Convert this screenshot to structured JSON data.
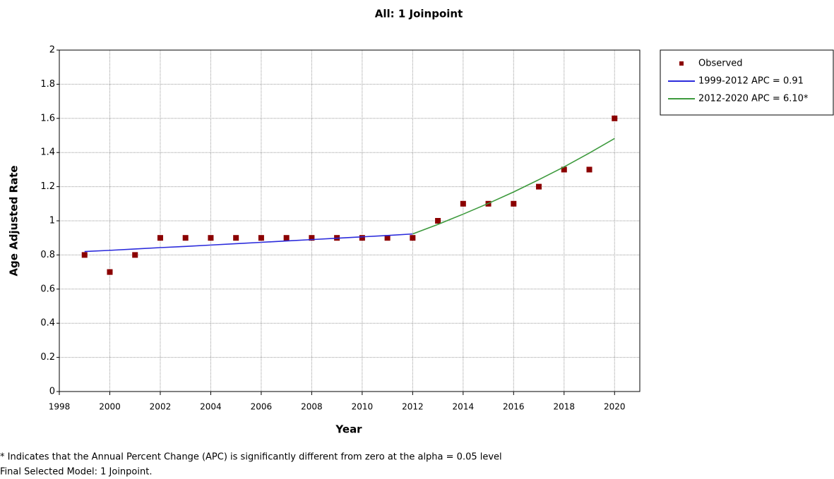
{
  "chart_data": {
    "type": "line",
    "title": "All: 1 Joinpoint",
    "x_label": "Year",
    "y_label": "Age Adjusted Rate",
    "xlim": [
      1998,
      2021
    ],
    "xticks": [
      1998,
      2000,
      2002,
      2004,
      2006,
      2008,
      2010,
      2012,
      2014,
      2016,
      2018,
      2020
    ],
    "ylim": [
      0,
      2
    ],
    "yticks": [
      0,
      0.2,
      0.4,
      0.6,
      0.8,
      1,
      1.2,
      1.4,
      1.6,
      1.8,
      2
    ],
    "grid": true,
    "legend": "outside-right",
    "series": [
      {
        "name": "Observed",
        "mode": "markers",
        "color": "#8b0000",
        "x": [
          1999,
          2000,
          2001,
          2002,
          2003,
          2004,
          2005,
          2006,
          2007,
          2008,
          2009,
          2010,
          2011,
          2012,
          2013,
          2014,
          2015,
          2016,
          2017,
          2018,
          2019,
          2020
        ],
        "values": [
          0.8,
          0.7,
          0.8,
          0.9,
          0.9,
          0.9,
          0.9,
          0.9,
          0.9,
          0.9,
          0.9,
          0.9,
          0.9,
          0.9,
          1.0,
          1.1,
          1.1,
          1.1,
          1.2,
          1.3,
          1.3,
          1.6
        ]
      },
      {
        "name": "1999-2012 APC  = 0.91",
        "mode": "lines",
        "color": "#2b2bdc",
        "x": [
          1999,
          2000,
          2001,
          2002,
          2003,
          2004,
          2005,
          2006,
          2007,
          2008,
          2009,
          2010,
          2011,
          2012
        ],
        "values": [
          0.82,
          0.827,
          0.835,
          0.843,
          0.85,
          0.858,
          0.866,
          0.874,
          0.882,
          0.89,
          0.898,
          0.906,
          0.914,
          0.923
        ]
      },
      {
        "name": "2012-2020 APC  = 6.10*",
        "mode": "lines",
        "color": "#3d9a3d",
        "x": [
          2012,
          2013,
          2014,
          2015,
          2016,
          2017,
          2018,
          2019,
          2020
        ],
        "values": [
          0.923,
          0.979,
          1.039,
          1.102,
          1.169,
          1.241,
          1.316,
          1.397,
          1.482
        ]
      }
    ],
    "notes": [
      "* Indicates that the Annual Percent Change (APC) is significantly different from zero at the alpha = 0.05 level",
      "Final Selected Model: 1 Joinpoint."
    ]
  }
}
